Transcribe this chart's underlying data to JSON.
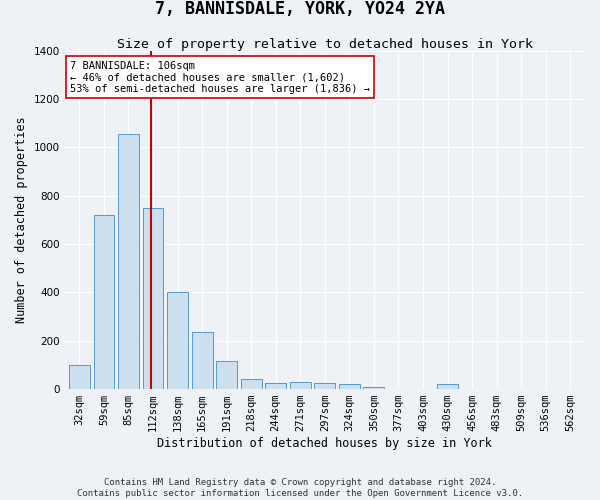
{
  "title": "7, BANNISDALE, YORK, YO24 2YA",
  "subtitle": "Size of property relative to detached houses in York",
  "xlabel": "Distribution of detached houses by size in York",
  "ylabel": "Number of detached properties",
  "categories": [
    "32sqm",
    "59sqm",
    "85sqm",
    "112sqm",
    "138sqm",
    "165sqm",
    "191sqm",
    "218sqm",
    "244sqm",
    "271sqm",
    "297sqm",
    "324sqm",
    "350sqm",
    "377sqm",
    "403sqm",
    "430sqm",
    "456sqm",
    "483sqm",
    "509sqm",
    "536sqm",
    "562sqm"
  ],
  "values": [
    100,
    720,
    1055,
    750,
    400,
    235,
    115,
    42,
    25,
    30,
    25,
    22,
    10,
    0,
    0,
    20,
    0,
    0,
    0,
    0,
    0
  ],
  "bar_color": "#cce0f0",
  "bar_edge_color": "#5599cc",
  "property_line_x": 2.93,
  "property_line_color": "#cc0000",
  "annotation_text": "7 BANNISDALE: 106sqm\n← 46% of detached houses are smaller (1,602)\n53% of semi-detached houses are larger (1,836) →",
  "annotation_box_color": "#ffffff",
  "annotation_box_edge": "#cc0000",
  "ylim": [
    0,
    1400
  ],
  "yticks": [
    0,
    200,
    400,
    600,
    800,
    1000,
    1200,
    1400
  ],
  "bg_color": "#eef2f7",
  "plot_bg_color": "#eef2f7",
  "footer": "Contains HM Land Registry data © Crown copyright and database right 2024.\nContains public sector information licensed under the Open Government Licence v3.0.",
  "title_fontsize": 12,
  "subtitle_fontsize": 9.5,
  "xlabel_fontsize": 8.5,
  "ylabel_fontsize": 8.5,
  "footer_fontsize": 6.5,
  "tick_fontsize": 7.5,
  "annot_fontsize": 7.5
}
